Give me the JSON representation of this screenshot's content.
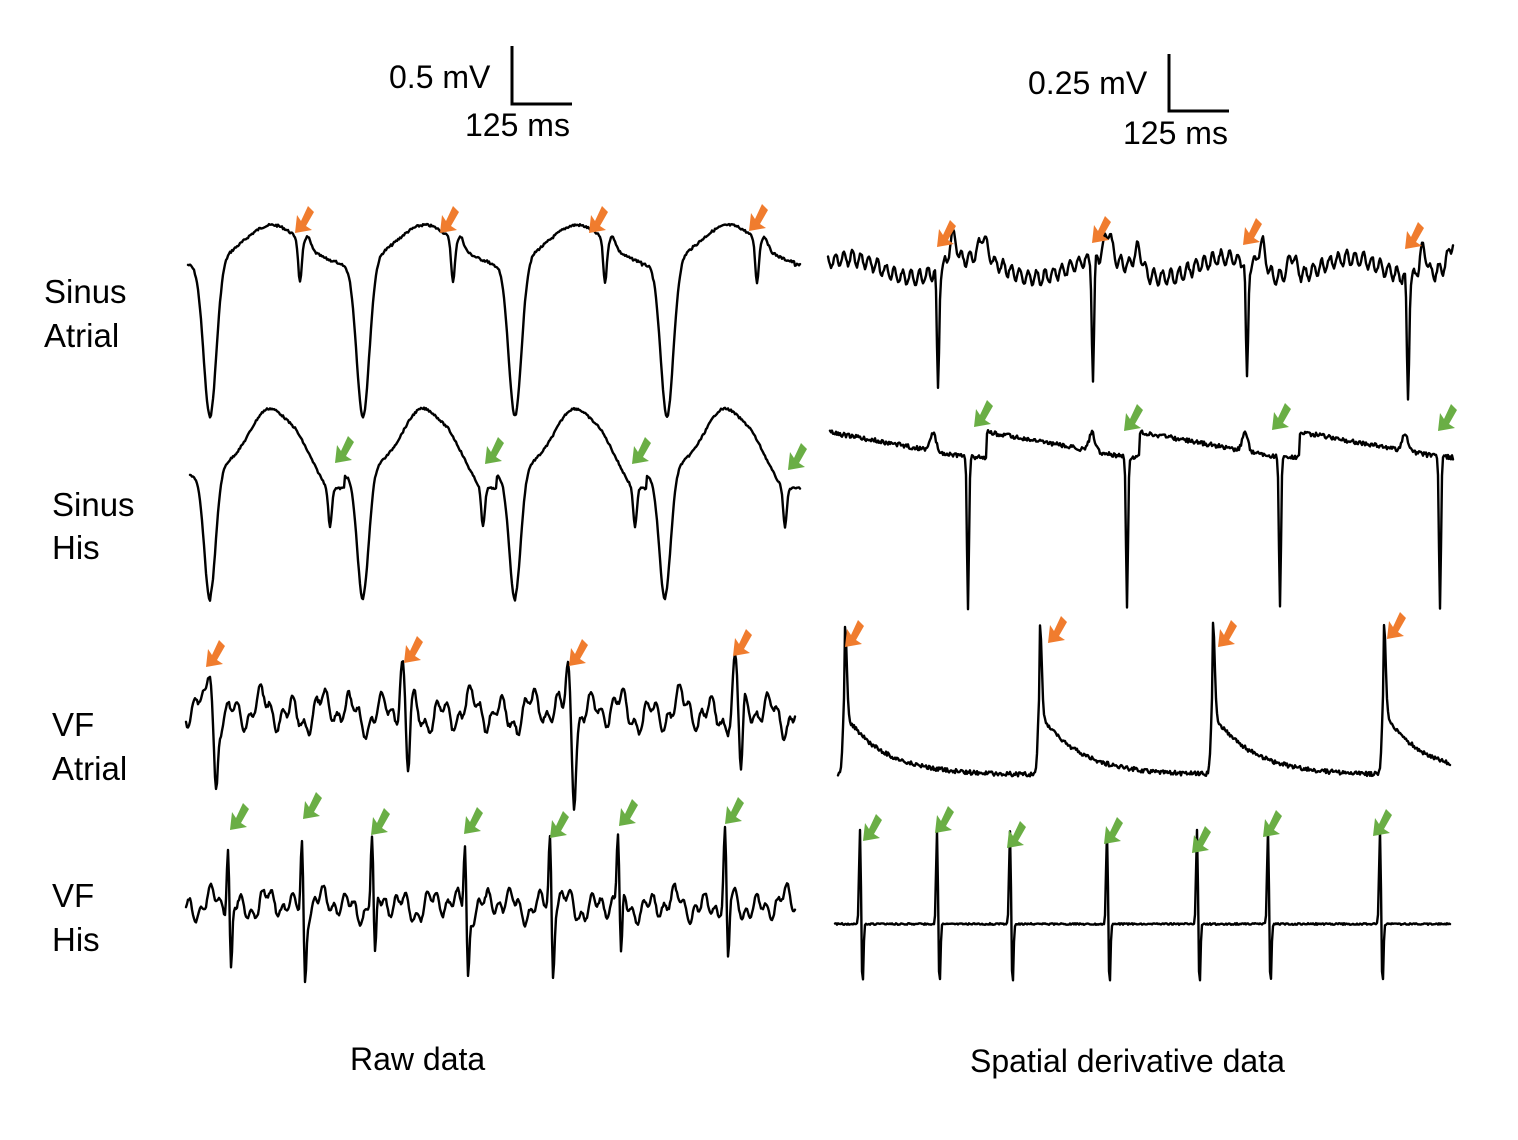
{
  "chart_data": {
    "type": "line",
    "panels": [
      {
        "column_label": "Raw data",
        "scalebar": {
          "voltage_label": "0.5 mV",
          "time_label": "125 ms"
        },
        "rows": [
          {
            "label_lines": [
              "Sinus",
              "Atrial"
            ],
            "signal": "sinus_atrial_raw",
            "arrow_color": "orange",
            "marker_count": 4
          },
          {
            "label_lines": [
              "Sinus",
              "His"
            ],
            "signal": "sinus_his_raw",
            "arrow_color": "green",
            "marker_count": 4
          },
          {
            "label_lines": [
              "VF",
              "Atrial"
            ],
            "signal": "vf_atrial_raw",
            "arrow_color": "orange",
            "marker_count": 4
          },
          {
            "label_lines": [
              "VF",
              "His"
            ],
            "signal": "vf_his_raw",
            "arrow_color": "green",
            "marker_count": 7
          }
        ]
      },
      {
        "column_label": "Spatial derivative data",
        "scalebar": {
          "voltage_label": "0.25 mV",
          "time_label": "125 ms"
        },
        "rows": [
          {
            "signal": "sinus_atrial_derivative",
            "arrow_color": "orange",
            "marker_count": 4
          },
          {
            "signal": "sinus_his_derivative",
            "arrow_color": "green",
            "marker_count": 4
          },
          {
            "signal": "vf_atrial_derivative",
            "arrow_color": "orange",
            "marker_count": 4
          },
          {
            "signal": "vf_his_derivative",
            "arrow_color": "green",
            "marker_count": 7
          }
        ]
      }
    ],
    "colors": {
      "trace": "#000000",
      "orange_arrow": "#F07C2E",
      "green_arrow": "#6AAE45"
    },
    "grid": false
  }
}
